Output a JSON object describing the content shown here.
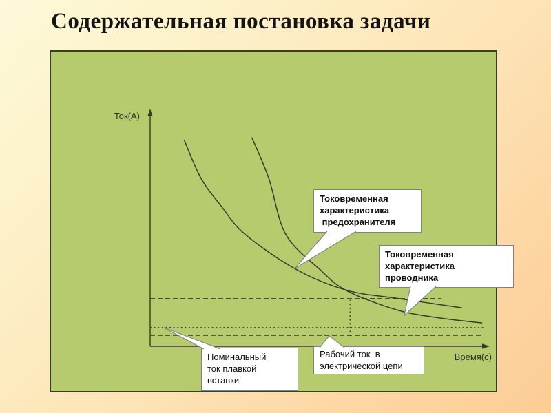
{
  "slide": {
    "title": "Содержательная постановка задачи"
  },
  "chart": {
    "y_axis_label": "Ток(А)",
    "x_axis_label": "Время(с)",
    "callouts": {
      "fuse": {
        "text": "Токовременная\nхарактеристика\n предохранителя"
      },
      "conductor": {
        "text": "Токовременная\nхарактеристика\nпроводника"
      },
      "nominal": {
        "text": "Номинальный\nток плавкой\nвставки"
      },
      "working": {
        "text": "Рабочий ток  в\nэлектрической цепи"
      }
    },
    "colors": {
      "panel": "#b5cb6e",
      "stroke": "#3a3a2c",
      "callout_bg": "#ffffff",
      "callout_border": "#808080",
      "bg_light": "#fdf9d9",
      "bg_dark": "#fccd95",
      "title": "#141414"
    }
  },
  "chart_data": {
    "type": "line",
    "title": "",
    "xlabel": "Время(с)",
    "ylabel": "Ток(А)",
    "axes_numeric": false,
    "grid": false,
    "legend_position": "callout-bubbles",
    "x_range": [
      0,
      10
    ],
    "y_range": [
      0,
      10
    ],
    "series": [
      {
        "id": "curve-fuse",
        "name": "Токовременная характеристика предохранителя",
        "points": [
          [
            1.0,
            8.85
          ],
          [
            1.5,
            7.2
          ],
          [
            2.1,
            6.0
          ],
          [
            2.8,
            4.8
          ],
          [
            4.3,
            3.3
          ],
          [
            5.8,
            2.4
          ],
          [
            7.3,
            2.05
          ],
          [
            9.2,
            1.65
          ]
        ]
      },
      {
        "id": "curve-conductor",
        "name": "Токовременная характеристика проводника",
        "points": [
          [
            3.0,
            8.95
          ],
          [
            3.5,
            7.2
          ],
          [
            4.0,
            4.8
          ],
          [
            5.0,
            3.3
          ],
          [
            5.8,
            2.38
          ],
          [
            7.3,
            1.55
          ],
          [
            8.6,
            1.2
          ],
          [
            9.8,
            1.0
          ]
        ]
      }
    ],
    "reference_lines": [
      {
        "id": "crossing-level-line",
        "name": "уровень пересечения характеристик",
        "axis": "y",
        "value": 2.04,
        "x_start": 0,
        "x_end": 8.6,
        "style": "dashed"
      },
      {
        "id": "nominal-current-line",
        "name": "Номинальный ток плавкой вставки",
        "axis": "y",
        "value": 0.8,
        "x_start": 0,
        "x_end": 9.9,
        "style": "dotted"
      },
      {
        "id": "working-current-line",
        "name": "Рабочий ток в электрической цепи",
        "axis": "y",
        "value": 0.47,
        "x_start": 0,
        "x_end": 9.8,
        "style": "dashed"
      },
      {
        "id": "crossing-time-line",
        "name": "момент пересечения",
        "axis": "x",
        "value": 5.9,
        "y_from": 0.44,
        "y_to": 2.04,
        "style": "dotted"
      }
    ],
    "annotations": [
      {
        "text": "Токовременная характеристика предохранителя",
        "anchor": [
          4.3,
          3.3
        ]
      },
      {
        "text": "Токовременная характеристика проводника",
        "anchor": [
          7.5,
          1.33
        ]
      },
      {
        "text": "Номинальный ток плавкой вставки",
        "anchor": [
          0.4,
          0.8
        ]
      },
      {
        "text": "Рабочий ток в электрической цепи",
        "anchor": [
          5.3,
          0.44
        ]
      }
    ]
  }
}
